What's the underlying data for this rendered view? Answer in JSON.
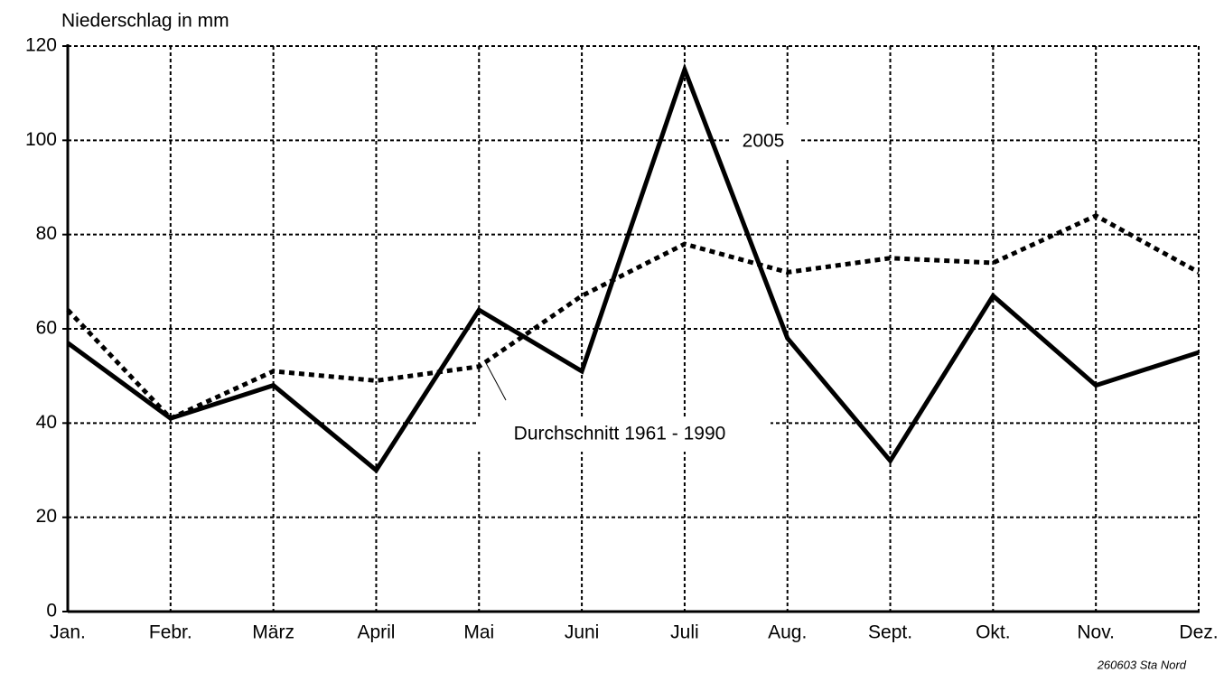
{
  "chart_data": {
    "type": "line",
    "y_label": "Niederschlag in mm",
    "categories": [
      "Jan.",
      "Febr.",
      "März",
      "April",
      "Mai",
      "Juni",
      "Juli",
      "Aug.",
      "Sept.",
      "Okt.",
      "Nov.",
      "Dez."
    ],
    "series": [
      {
        "name": "2005",
        "color": "#000000",
        "style": "solid",
        "values": [
          57,
          41,
          48,
          30,
          64,
          51,
          115,
          58,
          32,
          67,
          48,
          55
        ]
      },
      {
        "name": "Durchschnitt 1961 - 1990",
        "color": "#000000",
        "style": "dotted",
        "values": [
          64,
          41,
          51,
          49,
          52,
          67,
          78,
          72,
          75,
          74,
          84,
          72
        ]
      }
    ],
    "ylim": [
      0,
      120
    ],
    "yticks": [
      0,
      20,
      40,
      60,
      80,
      100,
      120
    ],
    "grid": true,
    "footnote": "260603 Sta Nord"
  }
}
